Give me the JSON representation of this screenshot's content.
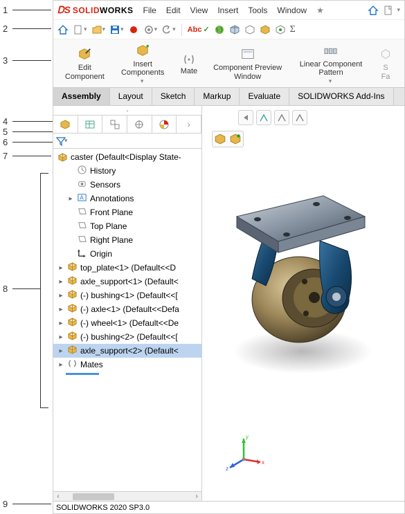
{
  "callouts": [
    "1",
    "2",
    "3",
    "4",
    "5",
    "6",
    "7",
    "8",
    "9"
  ],
  "logo": {
    "prefix": "S",
    "solid": "SOLID",
    "works": "WORKS"
  },
  "menu": [
    "File",
    "Edit",
    "View",
    "Insert",
    "Tools",
    "Window"
  ],
  "ribbon": {
    "edit_component": "Edit\nComponent",
    "insert_components": "Insert Components",
    "mate": "Mate",
    "component_preview": "Component\nPreview Window",
    "linear_pattern": "Linear Component Pattern",
    "smart": "S\nFa"
  },
  "tabs": [
    "Assembly",
    "Layout",
    "Sketch",
    "Markup",
    "Evaluate",
    "SOLIDWORKS Add-Ins"
  ],
  "tree_root": {
    "label": "caster  (Default<Display State-"
  },
  "tree": [
    {
      "label": "History",
      "icon": "history",
      "indent": 1
    },
    {
      "label": "Sensors",
      "icon": "sensors",
      "indent": 1
    },
    {
      "label": "Annotations",
      "icon": "annot",
      "indent": 1,
      "exp": true
    },
    {
      "label": "Front Plane",
      "icon": "plane",
      "indent": 1
    },
    {
      "label": "Top Plane",
      "icon": "plane",
      "indent": 1
    },
    {
      "label": "Right Plane",
      "icon": "plane",
      "indent": 1
    },
    {
      "label": "Origin",
      "icon": "origin",
      "indent": 1
    },
    {
      "label": "top_plate<1> (Default<<D",
      "icon": "part",
      "indent": 0,
      "exp": true
    },
    {
      "label": "axle_support<1> (Default<",
      "icon": "part",
      "indent": 0,
      "exp": true
    },
    {
      "label": "(-) bushing<1> (Default<<[",
      "icon": "part",
      "indent": 0,
      "exp": true
    },
    {
      "label": "(-) axle<1> (Default<<Defa",
      "icon": "part",
      "indent": 0,
      "exp": true
    },
    {
      "label": "(-) wheel<1> (Default<<De",
      "icon": "part",
      "indent": 0,
      "exp": true
    },
    {
      "label": "(-) bushing<2> (Default<<[",
      "icon": "part",
      "indent": 0,
      "exp": true
    },
    {
      "label": "axle_support<2> (Default<",
      "icon": "part",
      "indent": 0,
      "exp": true,
      "selected": true
    },
    {
      "label": "Mates",
      "icon": "mates",
      "indent": 0,
      "exp": true
    }
  ],
  "status": "SOLIDWORKS 2020 SP3.0",
  "colors": {
    "brand_red": "#d9230f",
    "selection": "#bcd4f0",
    "part_gold": "#e6b84a",
    "axis_x": "#e03030",
    "axis_y": "#30c030",
    "axis_z": "#3060e0",
    "wheel_dark": "#6e5c3d",
    "wheel_light": "#c4af82",
    "plate_dark": "#5a6472",
    "plate_light": "#aeb9c6",
    "bracket_blue": "#18496f"
  }
}
